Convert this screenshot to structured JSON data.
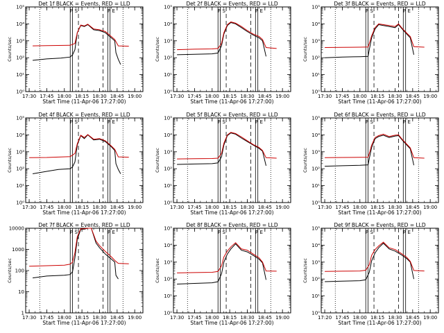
{
  "chart_data": [
    {
      "type": "line",
      "title": "Det 1f BLACK = Events, RED = LLD",
      "xlabel": "Start Time (11-Apr-06 17:27:00)",
      "ylabel": "Counts/sec",
      "yscale": "log",
      "ylim": [
        1,
        100000
      ],
      "yticks": [
        "10⁰",
        "10¹",
        "10²",
        "10³",
        "10⁴",
        "10⁵"
      ],
      "xticks": [
        "17:30",
        "17:45",
        "18:00",
        "18:15",
        "18:30",
        "18:45",
        "19:00"
      ],
      "letters": [
        "P",
        "S",
        "P",
        "E"
      ],
      "series": [
        {
          "color": "#000000",
          "x": [
            "17:33",
            "17:45",
            "17:57",
            "18:05",
            "18:07",
            "18:09",
            "18:11",
            "18:14",
            "18:17",
            "18:20",
            "18:25",
            "18:30",
            "18:35",
            "18:40",
            "18:43",
            "18:44",
            "18:46",
            "18:48"
          ],
          "y": [
            70,
            85,
            95,
            110,
            150,
            300,
            3000,
            8000,
            7000,
            9000,
            4500,
            4000,
            3000,
            1500,
            1000,
            200,
            80,
            40
          ]
        },
        {
          "color": "#cc0000",
          "x": [
            "17:33",
            "17:45",
            "18:05",
            "18:09",
            "18:11",
            "18:14",
            "18:17",
            "18:20",
            "18:25",
            "18:30",
            "18:35",
            "18:40",
            "18:43",
            "18:46",
            "18:55"
          ],
          "y": [
            500,
            520,
            540,
            700,
            3000,
            8500,
            7500,
            9500,
            5000,
            4500,
            3500,
            1800,
            1200,
            500,
            480
          ]
        }
      ]
    },
    {
      "type": "line",
      "title": "Det 2f BLACK = Events, RED = LLD",
      "xlabel": "Start Time (11-Apr-06 17:27:00)",
      "ylabel": "Counts/sec",
      "yscale": "log",
      "ylim": [
        1,
        100000
      ],
      "yticks": [
        "10⁰",
        "10¹",
        "10²",
        "10³",
        "10⁴",
        "10⁵"
      ],
      "xticks": [
        "17:30",
        "17:45",
        "18:00",
        "18:15",
        "18:30",
        "18:45",
        "19:00"
      ],
      "letters": [
        "P",
        "S",
        "P",
        "E"
      ],
      "series": [
        {
          "color": "#000000",
          "x": [
            "17:30",
            "17:45",
            "18:00",
            "18:05",
            "18:08",
            "18:10",
            "18:13",
            "18:16",
            "18:20",
            "18:25",
            "18:30",
            "18:35",
            "18:40",
            "18:43",
            "18:46"
          ],
          "y": [
            150,
            160,
            170,
            190,
            500,
            2500,
            8000,
            12000,
            10000,
            6000,
            3500,
            2200,
            1500,
            1000,
            120
          ]
        },
        {
          "color": "#cc0000",
          "x": [
            "17:30",
            "17:45",
            "18:00",
            "18:05",
            "18:08",
            "18:10",
            "18:13",
            "18:16",
            "18:20",
            "18:25",
            "18:30",
            "18:35",
            "18:40",
            "18:43",
            "18:46",
            "18:55"
          ],
          "y": [
            300,
            320,
            330,
            350,
            700,
            3000,
            9000,
            13000,
            11000,
            7000,
            4000,
            2500,
            1800,
            1200,
            400,
            350
          ]
        }
      ]
    },
    {
      "type": "line",
      "title": "Det 3f BLACK = Events, RED = LLD",
      "xlabel": "Start Time (11-Apr-06 17:27:00)",
      "ylabel": "Counts/sec",
      "yscale": "log",
      "ylim": [
        1,
        100000
      ],
      "yticks": [
        "10⁰",
        "10¹",
        "10²",
        "10³",
        "10⁴",
        "10⁵"
      ],
      "xticks": [
        "17:30",
        "17:45",
        "18:00",
        "18:15",
        "18:30",
        "18:45",
        "19:00"
      ],
      "letters": [
        "P",
        "S",
        "P",
        "E"
      ],
      "series": [
        {
          "color": "#000000",
          "x": [
            "17:30",
            "17:45",
            "18:00",
            "18:07",
            "18:08",
            "18:10",
            "18:13",
            "18:16",
            "18:20",
            "18:25",
            "18:30",
            "18:33",
            "18:36",
            "18:40",
            "18:43",
            "18:46"
          ],
          "y": [
            100,
            110,
            115,
            120,
            300,
            1500,
            5000,
            9000,
            8000,
            7000,
            6000,
            9000,
            5000,
            2500,
            1500,
            150
          ]
        },
        {
          "color": "#cc0000",
          "x": [
            "17:30",
            "17:45",
            "18:00",
            "18:07",
            "18:08",
            "18:10",
            "18:13",
            "18:16",
            "18:20",
            "18:25",
            "18:30",
            "18:33",
            "18:36",
            "18:40",
            "18:43",
            "18:46",
            "18:55"
          ],
          "y": [
            400,
            410,
            420,
            430,
            700,
            2000,
            6000,
            10000,
            9000,
            8000,
            7000,
            10000,
            5500,
            2800,
            1800,
            450,
            420
          ]
        }
      ]
    },
    {
      "type": "line",
      "title": "Det 4f BLACK = Events, RED = LLD",
      "xlabel": "Start Time (11-Apr-06 17:27:00)",
      "ylabel": "Counts/sec",
      "yscale": "log",
      "ylim": [
        1,
        100000
      ],
      "yticks": [
        "10⁰",
        "10¹",
        "10²",
        "10³",
        "10⁴",
        "10⁵"
      ],
      "xticks": [
        "17:30",
        "17:45",
        "18:00",
        "18:15",
        "18:30",
        "18:45",
        "19:00"
      ],
      "letters": [
        "P",
        "S",
        "P",
        "E"
      ],
      "series": [
        {
          "color": "#000000",
          "x": [
            "17:33",
            "17:45",
            "17:55",
            "18:05",
            "18:07",
            "18:09",
            "18:11",
            "18:14",
            "18:17",
            "18:20",
            "18:25",
            "18:30",
            "18:35",
            "18:40",
            "18:43",
            "18:44",
            "18:46",
            "18:48"
          ],
          "y": [
            50,
            70,
            90,
            100,
            130,
            250,
            2500,
            9000,
            6000,
            10000,
            5000,
            5500,
            4000,
            2000,
            1200,
            200,
            90,
            50
          ]
        },
        {
          "color": "#cc0000",
          "x": [
            "17:30",
            "17:45",
            "18:05",
            "18:09",
            "18:11",
            "18:14",
            "18:17",
            "18:20",
            "18:25",
            "18:30",
            "18:35",
            "18:40",
            "18:43",
            "18:46",
            "18:55"
          ],
          "y": [
            450,
            460,
            520,
            800,
            3000,
            9500,
            7000,
            10500,
            5500,
            6000,
            4500,
            2200,
            1400,
            500,
            480
          ]
        }
      ]
    },
    {
      "type": "line",
      "title": "Det 5f BLACK = Events, RED = LLD",
      "xlabel": "Start Time (11-Apr-06 17:27:00)",
      "ylabel": "Counts/sec",
      "yscale": "log",
      "ylim": [
        1,
        100000
      ],
      "yticks": [
        "10⁰",
        "10¹",
        "10²",
        "10³",
        "10⁴",
        "10⁵"
      ],
      "xticks": [
        "17:30",
        "17:45",
        "18:00",
        "18:15",
        "18:30",
        "18:45",
        "19:00"
      ],
      "letters": [
        "P",
        "S",
        "P",
        "E"
      ],
      "series": [
        {
          "color": "#000000",
          "x": [
            "17:30",
            "17:45",
            "18:00",
            "18:05",
            "18:08",
            "18:10",
            "18:13",
            "18:16",
            "18:20",
            "18:25",
            "18:30",
            "18:35",
            "18:40",
            "18:43",
            "18:46"
          ],
          "y": [
            180,
            190,
            200,
            220,
            500,
            2500,
            9000,
            13000,
            11000,
            6500,
            4000,
            2500,
            1600,
            1100,
            150
          ]
        },
        {
          "color": "#cc0000",
          "x": [
            "17:30",
            "17:45",
            "18:00",
            "18:05",
            "18:08",
            "18:10",
            "18:13",
            "18:16",
            "18:20",
            "18:25",
            "18:30",
            "18:35",
            "18:40",
            "18:43",
            "18:46",
            "18:55"
          ],
          "y": [
            380,
            390,
            400,
            420,
            800,
            3200,
            10000,
            14000,
            12000,
            7500,
            4500,
            2700,
            1800,
            1200,
            450,
            420
          ]
        }
      ]
    },
    {
      "type": "line",
      "title": "Det 6f BLACK = Events, RED = LLD",
      "xlabel": "Start Time (11-Apr-06 17:27:00)",
      "ylabel": "Counts/sec",
      "yscale": "log",
      "ylim": [
        1,
        100000
      ],
      "yticks": [
        "10⁰",
        "10¹",
        "10²",
        "10³",
        "10⁴",
        "10⁵"
      ],
      "xticks": [
        "17:30",
        "17:45",
        "18:00",
        "18:15",
        "18:30",
        "18:45",
        "19:00"
      ],
      "letters": [
        "P",
        "S",
        "P",
        "E"
      ],
      "series": [
        {
          "color": "#000000",
          "x": [
            "17:30",
            "17:45",
            "18:00",
            "18:07",
            "18:08",
            "18:10",
            "18:13",
            "18:16",
            "18:20",
            "18:25",
            "18:30",
            "18:33",
            "18:36",
            "18:40",
            "18:43",
            "18:46"
          ],
          "y": [
            140,
            150,
            160,
            170,
            400,
            1800,
            6000,
            8000,
            9500,
            7000,
            8500,
            9000,
            5000,
            2500,
            1500,
            160
          ]
        },
        {
          "color": "#cc0000",
          "x": [
            "17:30",
            "17:45",
            "18:00",
            "18:07",
            "18:08",
            "18:10",
            "18:13",
            "18:16",
            "18:20",
            "18:25",
            "18:30",
            "18:33",
            "18:36",
            "18:40",
            "18:43",
            "18:46",
            "18:55"
          ],
          "y": [
            450,
            460,
            470,
            480,
            800,
            2500,
            7000,
            9000,
            11000,
            8000,
            9500,
            10000,
            5500,
            2800,
            1700,
            450,
            420
          ]
        }
      ]
    },
    {
      "type": "line",
      "title": "Det 7f BLACK = Events, RED = LLD",
      "xlabel": "Start Time (11-Apr-06 17:27:00)",
      "ylabel": "Counts/sec",
      "yscale": "log",
      "ylim": [
        1,
        10000
      ],
      "yticks": [
        "1",
        "10",
        "100",
        "1000",
        "10000"
      ],
      "xticks": [
        "17:30",
        "17:45",
        "18:00",
        "18:15",
        "18:30",
        "18:45",
        "19:00"
      ],
      "letters": [
        "P",
        "S",
        "P",
        "E"
      ],
      "series": [
        {
          "color": "#000000",
          "x": [
            "17:33",
            "17:45",
            "18:00",
            "18:05",
            "18:07",
            "18:09",
            "18:11",
            "18:14",
            "18:17",
            "18:20",
            "18:23",
            "18:27",
            "18:30",
            "18:35",
            "18:40",
            "18:43",
            "18:44",
            "18:46"
          ],
          "y": [
            45,
            55,
            60,
            65,
            90,
            400,
            3000,
            9000,
            9000,
            10000,
            10000,
            2000,
            1200,
            600,
            350,
            250,
            60,
            40
          ]
        },
        {
          "color": "#cc0000",
          "x": [
            "17:30",
            "17:45",
            "18:00",
            "18:05",
            "18:07",
            "18:09",
            "18:11",
            "18:14",
            "18:17",
            "18:20",
            "18:23",
            "18:27",
            "18:30",
            "18:35",
            "18:40",
            "18:43",
            "18:46",
            "18:55"
          ],
          "y": [
            160,
            170,
            180,
            200,
            250,
            700,
            4000,
            9500,
            9500,
            10000,
            10000,
            2500,
            1500,
            800,
            450,
            300,
            220,
            210
          ]
        }
      ]
    },
    {
      "type": "line",
      "title": "Det 8f BLACK = Events, RED = LLD",
      "xlabel": "Start Time (11-Apr-06 17:27:00)",
      "ylabel": "Counts/sec",
      "yscale": "log",
      "ylim": [
        1,
        100000
      ],
      "yticks": [
        "10⁰",
        "10¹",
        "10²",
        "10³",
        "10⁴",
        "10⁵"
      ],
      "xticks": [
        "17:30",
        "17:45",
        "18:00",
        "18:15",
        "18:30",
        "18:45",
        "19:00"
      ],
      "letters": [
        "P",
        "S",
        "P",
        "E"
      ],
      "series": [
        {
          "color": "#000000",
          "x": [
            "17:30",
            "17:45",
            "18:00",
            "18:05",
            "18:08",
            "18:10",
            "18:13",
            "18:16",
            "18:20",
            "18:25",
            "18:30",
            "18:35",
            "18:40",
            "18:43",
            "18:46"
          ],
          "y": [
            50,
            55,
            60,
            70,
            200,
            1000,
            3000,
            6000,
            12000,
            5000,
            4000,
            2500,
            1500,
            900,
            90
          ]
        },
        {
          "color": "#cc0000",
          "x": [
            "17:30",
            "17:45",
            "18:00",
            "18:05",
            "18:08",
            "18:10",
            "18:13",
            "18:16",
            "18:20",
            "18:25",
            "18:30",
            "18:35",
            "18:40",
            "18:43",
            "18:46",
            "18:55"
          ],
          "y": [
            230,
            240,
            250,
            280,
            600,
            2000,
            4500,
            8000,
            14000,
            6000,
            5000,
            3000,
            1800,
            1000,
            300,
            290
          ]
        }
      ]
    },
    {
      "type": "line",
      "title": "Det 9f BLACK = Events, RED = LLD",
      "xlabel": "Start Time (11-Apr-06 17:27:00)",
      "ylabel": "Counts/sec",
      "yscale": "log",
      "ylim": [
        1,
        100000
      ],
      "yticks": [
        "10⁰",
        "10¹",
        "10²",
        "10³",
        "10⁴",
        "10⁵"
      ],
      "xticks": [
        "17:20",
        "17:45",
        "18:00",
        "18:15",
        "18:30",
        "18:45",
        "19:00"
      ],
      "letters": [
        "P",
        "S",
        "P",
        "E"
      ],
      "series": [
        {
          "color": "#000000",
          "x": [
            "17:30",
            "17:45",
            "18:00",
            "18:05",
            "18:08",
            "18:10",
            "18:13",
            "18:16",
            "18:20",
            "18:25",
            "18:30",
            "18:35",
            "18:40",
            "18:43",
            "18:46"
          ],
          "y": [
            70,
            75,
            80,
            90,
            250,
            1200,
            3500,
            7000,
            13000,
            6000,
            4500,
            2800,
            1600,
            1000,
            100
          ]
        },
        {
          "color": "#cc0000",
          "x": [
            "17:30",
            "17:45",
            "18:00",
            "18:05",
            "18:08",
            "18:10",
            "18:13",
            "18:16",
            "18:20",
            "18:25",
            "18:30",
            "18:35",
            "18:40",
            "18:43",
            "18:46",
            "18:55"
          ],
          "y": [
            280,
            290,
            300,
            330,
            700,
            2500,
            5500,
            9000,
            15000,
            7000,
            5500,
            3300,
            1900,
            1100,
            320,
            300
          ]
        }
      ]
    }
  ]
}
